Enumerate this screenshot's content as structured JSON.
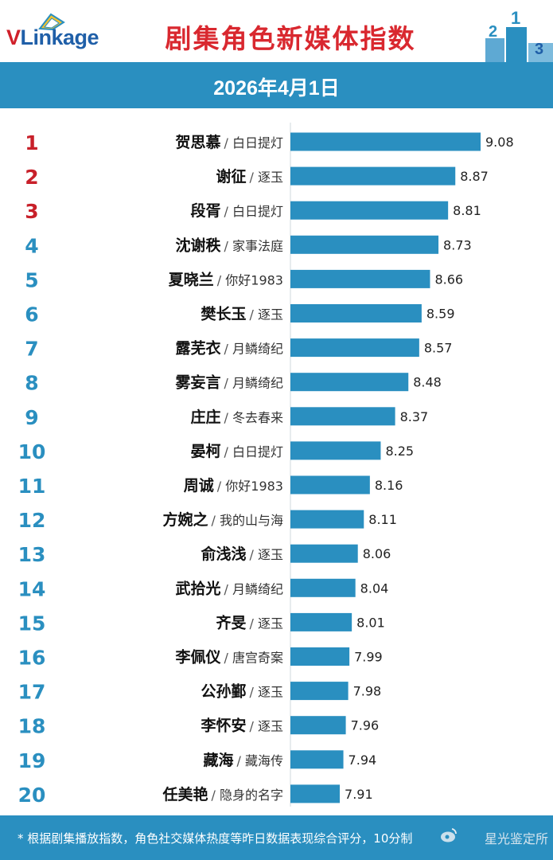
{
  "header": {
    "logo_text": "VLinkage",
    "title": "剧集角色新媒体指数"
  },
  "date": "2026年4月1日",
  "footer": {
    "note": "* 根据剧集播放指数，角色社交媒体热度等昨日数据表现综合评分，10分制",
    "watermark": "星光鉴定所"
  },
  "colors": {
    "bar": "#2a8fc0",
    "rank_top3": "#c8202a",
    "rank_other": "#2a8fc0",
    "title": "#d9282f"
  },
  "chart_data": {
    "type": "bar",
    "orientation": "horizontal",
    "title": "剧集角色新媒体指数",
    "xlim": [
      7.5,
      9.08
    ],
    "grid": false,
    "rows": [
      {
        "rank": "1",
        "name": "贺思慕",
        "show": "白日提灯",
        "value": 9.08
      },
      {
        "rank": "2",
        "name": "谢征",
        "show": "逐玉",
        "value": 8.87
      },
      {
        "rank": "3",
        "name": "段胥",
        "show": "白日提灯",
        "value": 8.81
      },
      {
        "rank": "4",
        "name": "沈谢秩",
        "show": "家事法庭",
        "value": 8.73
      },
      {
        "rank": "5",
        "name": "夏晓兰",
        "show": "你好1983",
        "value": 8.66
      },
      {
        "rank": "6",
        "name": "樊长玉",
        "show": "逐玉",
        "value": 8.59
      },
      {
        "rank": "7",
        "name": "露芜衣",
        "show": "月鳞绮纪",
        "value": 8.57
      },
      {
        "rank": "8",
        "name": "雾妄言",
        "show": "月鳞绮纪",
        "value": 8.48
      },
      {
        "rank": "9",
        "name": "庄庄",
        "show": "冬去春来",
        "value": 8.37
      },
      {
        "rank": "10",
        "name": "晏柯",
        "show": "白日提灯",
        "value": 8.25
      },
      {
        "rank": "11",
        "name": "周诚",
        "show": "你好1983",
        "value": 8.16
      },
      {
        "rank": "12",
        "name": "方婉之",
        "show": "我的山与海",
        "value": 8.11
      },
      {
        "rank": "13",
        "name": "俞浅浅",
        "show": "逐玉",
        "value": 8.06
      },
      {
        "rank": "14",
        "name": "武拾光",
        "show": "月鳞绮纪",
        "value": 8.04
      },
      {
        "rank": "15",
        "name": "齐旻",
        "show": "逐玉",
        "value": 8.01
      },
      {
        "rank": "16",
        "name": "李佩仪",
        "show": "唐宫奇案",
        "value": 7.99
      },
      {
        "rank": "17",
        "name": "公孙鄞",
        "show": "逐玉",
        "value": 7.98
      },
      {
        "rank": "18",
        "name": "李怀安",
        "show": "逐玉",
        "value": 7.96
      },
      {
        "rank": "19",
        "name": "藏海",
        "show": "藏海传",
        "value": 7.94
      },
      {
        "rank": "20",
        "name": "任美艳",
        "show": "隐身的名字",
        "value": 7.91
      }
    ]
  }
}
